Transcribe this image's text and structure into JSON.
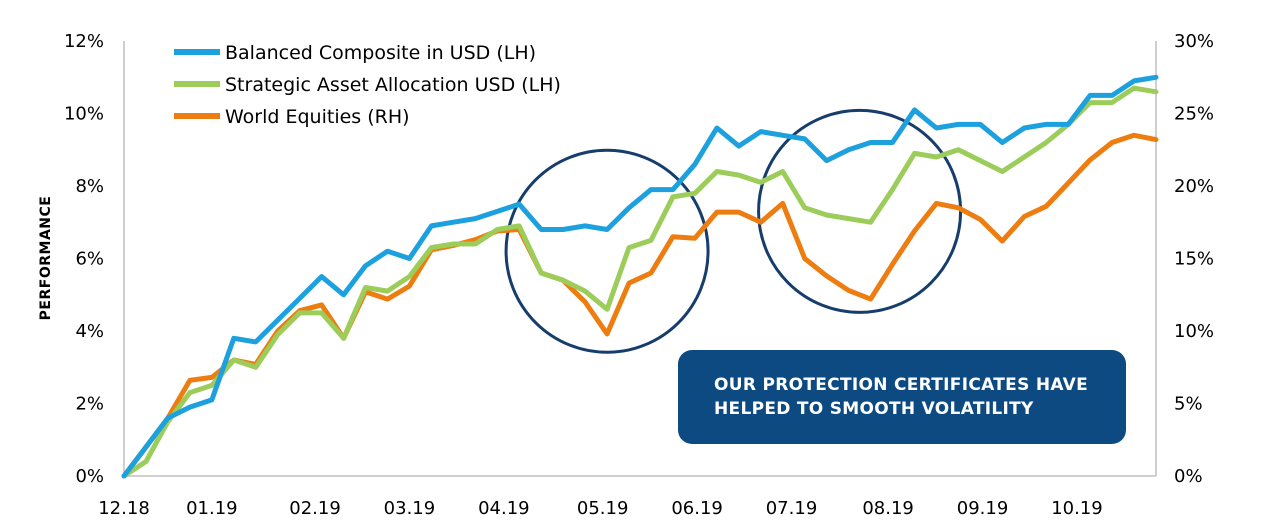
{
  "chart_data": {
    "type": "line",
    "title": "",
    "xlabel": "",
    "ylabel": "PERFORMANCE",
    "x": [
      0,
      1,
      2,
      3,
      4,
      5,
      6,
      7,
      8,
      9,
      10,
      11,
      12,
      13,
      14,
      15,
      16,
      17,
      18,
      19,
      20,
      21,
      22,
      23,
      24,
      25,
      26,
      27,
      28,
      29,
      30,
      31,
      32,
      33,
      34,
      35,
      36,
      37,
      38,
      39,
      40,
      41,
      42,
      43,
      44,
      45,
      46,
      47
    ],
    "x_ticks": [
      {
        "x": 0,
        "label": "12.18"
      },
      {
        "x": 4,
        "label": "01.19"
      },
      {
        "x": 8.7,
        "label": "02.19"
      },
      {
        "x": 13,
        "label": "03.19"
      },
      {
        "x": 17.3,
        "label": "04.19"
      },
      {
        "x": 21.8,
        "label": "05.19"
      },
      {
        "x": 26.1,
        "label": "06.19"
      },
      {
        "x": 30.4,
        "label": "07.19"
      },
      {
        "x": 34.8,
        "label": "08.19"
      },
      {
        "x": 39.1,
        "label": "09.19"
      },
      {
        "x": 43.4,
        "label": "10.19"
      }
    ],
    "x_range": [
      0,
      47
    ],
    "y_left": {
      "range": [
        0,
        12
      ],
      "ticks": [
        0,
        2,
        4,
        6,
        8,
        10,
        12
      ],
      "tick_labels": [
        "0%",
        "2%",
        "4%",
        "6%",
        "8%",
        "10%",
        "12%"
      ]
    },
    "y_right": {
      "range": [
        0,
        30
      ],
      "ticks": [
        0,
        5,
        10,
        15,
        20,
        25,
        30
      ],
      "tick_labels": [
        "0%",
        "5%",
        "10%",
        "15%",
        "20%",
        "25%",
        "30%"
      ]
    },
    "legend_position": "top-left",
    "grid": false,
    "series": [
      {
        "name": "Balanced Composite in USD (LH)",
        "axis": "left",
        "color": "#1da1de",
        "values": [
          0.0,
          0.8,
          1.6,
          1.9,
          2.1,
          3.8,
          3.7,
          4.3,
          4.9,
          5.5,
          5.0,
          5.8,
          6.2,
          6.0,
          6.9,
          7.0,
          7.1,
          7.3,
          7.5,
          6.8,
          6.8,
          6.9,
          6.8,
          7.4,
          7.9,
          7.9,
          8.6,
          9.6,
          9.1,
          9.5,
          9.4,
          9.3,
          8.7,
          9.0,
          9.2,
          9.2,
          10.1,
          9.6,
          9.7,
          9.7,
          9.2,
          9.6,
          9.7,
          9.7,
          10.5,
          10.5,
          10.9,
          11.0
        ]
      },
      {
        "name": "Strategic Asset Allocation USD (LH)",
        "axis": "left",
        "color": "#9ccd5b",
        "values": [
          0.0,
          0.4,
          1.5,
          2.3,
          2.5,
          3.2,
          3.0,
          3.9,
          4.5,
          4.5,
          3.8,
          5.2,
          5.1,
          5.5,
          6.3,
          6.4,
          6.4,
          6.8,
          6.9,
          5.6,
          5.4,
          5.1,
          4.6,
          6.3,
          6.5,
          7.7,
          7.8,
          8.4,
          8.3,
          8.1,
          8.4,
          7.4,
          7.2,
          7.1,
          7.0,
          7.9,
          8.9,
          8.8,
          9.0,
          8.7,
          8.4,
          8.8,
          9.2,
          9.7,
          10.3,
          10.3,
          10.7,
          10.6
        ]
      },
      {
        "name": "World Equities (RH)",
        "axis": "right",
        "color": "#ee7d11",
        "values": [
          0.0,
          2.0,
          4.0,
          6.6,
          6.8,
          8.0,
          7.7,
          10.0,
          11.4,
          11.8,
          9.5,
          12.7,
          12.2,
          13.1,
          15.6,
          15.9,
          16.3,
          16.9,
          17.0,
          14.0,
          13.5,
          12.0,
          9.8,
          13.3,
          14.0,
          16.5,
          16.4,
          18.2,
          18.2,
          17.5,
          18.8,
          15.0,
          13.8,
          12.8,
          12.2,
          14.6,
          16.9,
          18.8,
          18.5,
          17.7,
          16.2,
          17.9,
          18.6,
          20.2,
          21.8,
          23.0,
          23.5,
          23.2
        ]
      }
    ]
  },
  "callout": {
    "line1": "OUR PROTECTION CERTIFICATES HAVE",
    "line2": "HELPED TO SMOOTH VOLATILITY",
    "bg": "#0d4a82"
  },
  "highlight_color": "#163d6b"
}
